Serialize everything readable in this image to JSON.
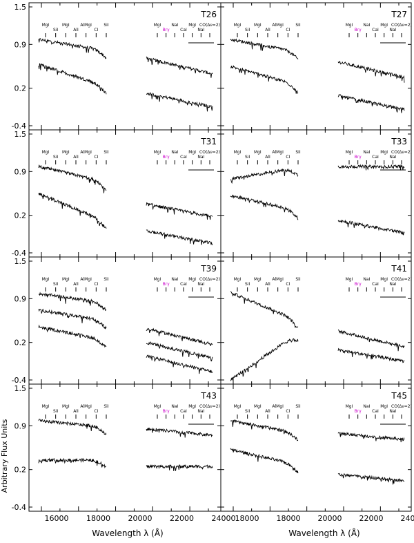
{
  "figure": {
    "ylabel": "Arbitrary Flux Units",
    "xlabel_left": "Wavelength λ (Å)",
    "xlabel_right": "Wavelength λ (Å)",
    "ylim": [
      -0.4,
      1.5
    ],
    "yticks": [
      "1.5",
      "0.9",
      "0.2",
      "-0.4"
    ],
    "xticks_left": [
      "16000",
      "18000",
      "20000",
      "22000",
      "24000"
    ],
    "xticks_right": [
      "18000",
      "18000",
      "20000",
      "22000",
      "24000"
    ],
    "line_labels_h": [
      "MgI",
      "SiI",
      "MgI",
      "AlI",
      "AlMgI",
      "CI",
      "SiI"
    ],
    "line_labels_k": [
      "MgI",
      "Brγ",
      "NaI",
      "CaI",
      "MgI",
      "NaI",
      "CO(Δν=2)"
    ],
    "accent_color": "#cc00cc"
  },
  "chart_data": [
    {
      "type": "line",
      "panel": "T26",
      "series": [
        {
          "level_h": 0.98,
          "level_k": 0.68,
          "slope_h": -0.18,
          "slope_k": -0.25
        },
        {
          "level_h": 0.58,
          "level_k": 0.12,
          "slope_h": -0.35,
          "slope_k": -0.22
        }
      ]
    },
    {
      "type": "line",
      "panel": "T27",
      "series": [
        {
          "level_h": 0.98,
          "level_k": 0.62,
          "slope_h": -0.2,
          "slope_k": -0.25
        },
        {
          "level_h": 0.55,
          "level_k": 0.08,
          "slope_h": -0.3,
          "slope_k": -0.22
        }
      ]
    },
    {
      "type": "line",
      "panel": "T31",
      "series": [
        {
          "level_h": 0.98,
          "level_k": 0.38,
          "slope_h": -0.25,
          "slope_k": -0.2
        },
        {
          "level_h": 0.55,
          "level_k": -0.05,
          "slope_h": -0.45,
          "slope_k": -0.2
        }
      ]
    },
    {
      "type": "line",
      "panel": "T33",
      "series": [
        {
          "level_h": 0.78,
          "level_k": 0.98,
          "slope_h": 0.18,
          "slope_k": 0.0
        },
        {
          "level_h": 0.52,
          "level_k": 0.12,
          "slope_h": -0.25,
          "slope_k": -0.2
        }
      ]
    },
    {
      "type": "line",
      "panel": "T39",
      "series": [
        {
          "level_h": 0.98,
          "level_k": 0.42,
          "slope_h": -0.15,
          "slope_k": -0.25
        },
        {
          "level_h": 0.72,
          "level_k": 0.2,
          "slope_h": -0.18,
          "slope_k": -0.25
        },
        {
          "level_h": 0.45,
          "level_k": -0.02,
          "slope_h": -0.22,
          "slope_k": -0.25
        }
      ]
    },
    {
      "type": "line",
      "panel": "T41",
      "series": [
        {
          "level_h": 1.0,
          "level_k": 0.38,
          "slope_h": -0.45,
          "slope_k": -0.25
        },
        {
          "level_h": -0.4,
          "level_k": 0.08,
          "slope_h": 0.75,
          "slope_k": -0.18
        }
      ]
    },
    {
      "type": "line",
      "panel": "T43",
      "series": [
        {
          "level_h": 0.98,
          "level_k": 0.85,
          "slope_h": -0.1,
          "slope_k": -0.1
        },
        {
          "level_h": 0.35,
          "level_k": 0.25,
          "slope_h": 0.0,
          "slope_k": 0.0
        }
      ]
    },
    {
      "type": "line",
      "panel": "T45",
      "series": [
        {
          "level_h": 0.98,
          "level_k": 0.78,
          "slope_h": -0.2,
          "slope_k": -0.1
        },
        {
          "level_h": 0.52,
          "level_k": 0.12,
          "slope_h": -0.25,
          "slope_k": -0.1
        }
      ]
    }
  ]
}
